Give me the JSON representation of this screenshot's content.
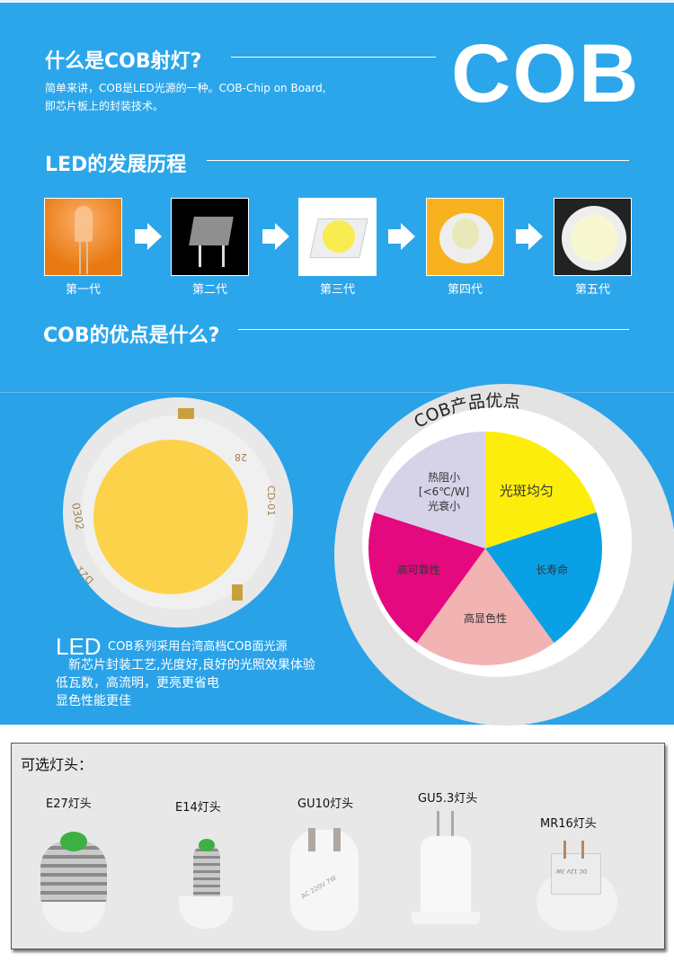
{
  "intro": {
    "title": "什么是COB射灯?",
    "desc_line1": "简单来讲，COB是LED光源的一种。COB-Chip on Board,",
    "desc_line2": "即芯片板上的封装技术。",
    "big_logo": "COB"
  },
  "history": {
    "title": "LED的发展历程",
    "generations": [
      {
        "label": "第一代"
      },
      {
        "label": "第二代"
      },
      {
        "label": "第三代"
      },
      {
        "label": "第四代"
      },
      {
        "label": "第五代"
      }
    ]
  },
  "advantages": {
    "title": "COB的优点是什么?",
    "chip_markings": [
      "0302",
      "D21",
      "CD-01",
      "28",
      "+",
      "-"
    ],
    "wheel": {
      "title": "COB产品优点",
      "segments": [
        {
          "label": "光斑均匀",
          "color": "#fcee0a"
        },
        {
          "label": "长寿命",
          "color": "#0aa0e6"
        },
        {
          "label": "高显色性",
          "color": "#f2b3b3"
        },
        {
          "label": "高可靠性",
          "color": "#e5097f"
        },
        {
          "label": "热阻小\n[<6℃/W]\n光衰小",
          "color": "#d6d2e8",
          "lines": [
            "热阻小",
            "[<6℃/W]",
            "光衰小"
          ]
        }
      ]
    },
    "led_big": "LED",
    "led_line1": "COB系列采用台湾高档COB面光源",
    "led_line2": "新芯片封装工艺,光度好,良好的光照效果体验",
    "led_line3": "低瓦数，高流明，更亮更省电",
    "led_line4": "显色性能更佳"
  },
  "bases": {
    "title": "可选灯头：",
    "items": [
      {
        "label": "E27灯头"
      },
      {
        "label": "E14灯头"
      },
      {
        "label": "GU10灯头",
        "print": "AC 220V 7W"
      },
      {
        "label": "GU5.3灯头"
      },
      {
        "label": "MR16灯头",
        "print": "DC 12V 3W"
      }
    ]
  }
}
